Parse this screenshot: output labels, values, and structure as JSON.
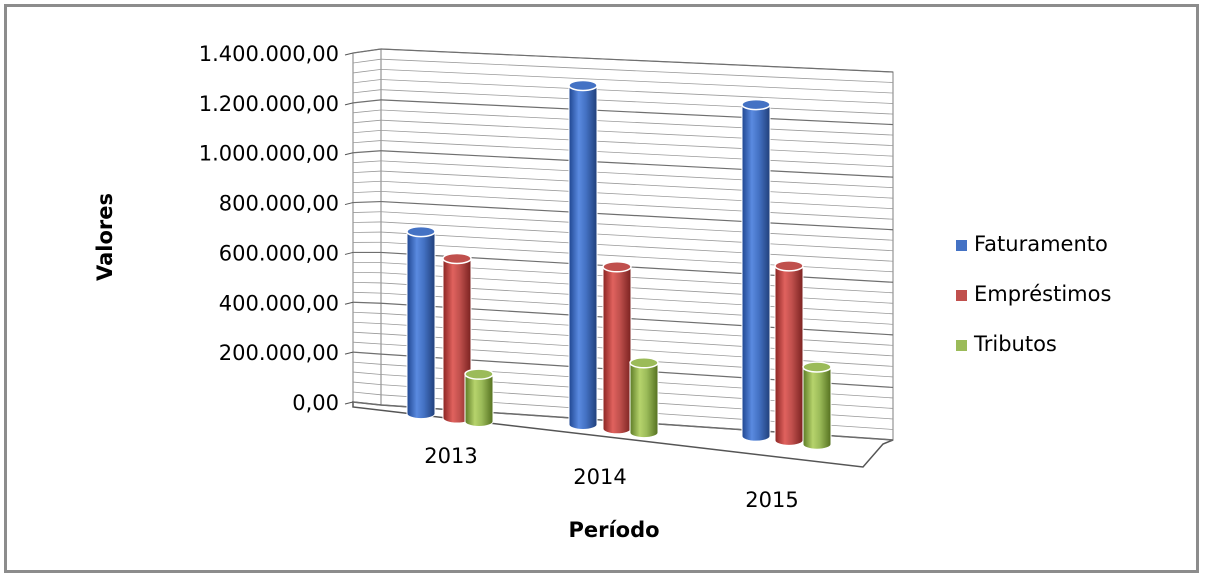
{
  "chart_data": {
    "type": "bar",
    "style": "3d-cylinder",
    "title": "",
    "xlabel": "Período",
    "ylabel": "Valores",
    "categories": [
      "2013",
      "2014",
      "2015"
    ],
    "series": [
      {
        "name": "Faturamento",
        "color": "#4472c4",
        "values": [
          730000,
          1360000,
          1330000
        ]
      },
      {
        "name": "Empréstimos",
        "color": "#c0504d",
        "values": [
          640000,
          650000,
          700000
        ]
      },
      {
        "name": "Tributos",
        "color": "#9bbb59",
        "values": [
          190000,
          280000,
          310000
        ]
      }
    ],
    "ylim": [
      0,
      1400000
    ],
    "yticks": [
      "0,00",
      "200.000,00",
      "400.000,00",
      "600.000,00",
      "800.000,00",
      "1.000.000,00",
      "1.200.000,00",
      "1.400.000,00"
    ],
    "grid": true,
    "legend": "right"
  }
}
